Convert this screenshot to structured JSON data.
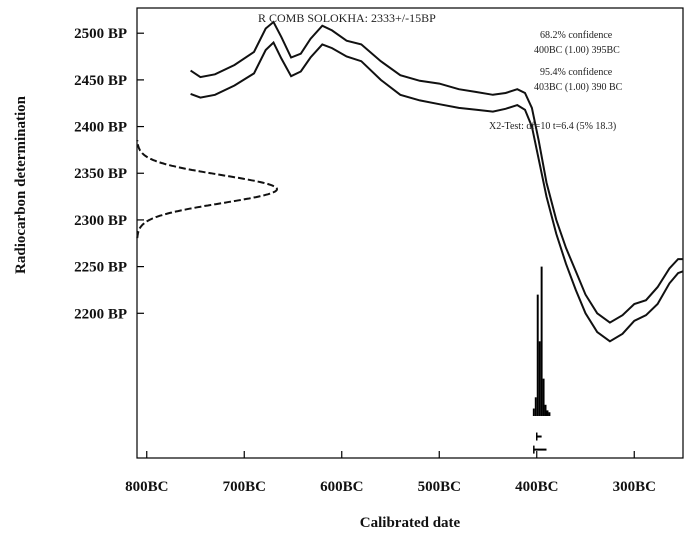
{
  "chart_data": {
    "type": "line",
    "title": "R COMB SOLOKHA: 2333+/-15BP",
    "xlabel": "Calibrated date",
    "ylabel": "Radiocarbon determination",
    "xlim": [
      -810,
      -250
    ],
    "ylim": [
      2045,
      2527
    ],
    "x_ticks": [
      {
        "value": -800,
        "label": "800BC"
      },
      {
        "value": -700,
        "label": "700BC"
      },
      {
        "value": -600,
        "label": "600BC"
      },
      {
        "value": -500,
        "label": "500BC"
      },
      {
        "value": -400,
        "label": "400BC"
      },
      {
        "value": -300,
        "label": "300BC"
      }
    ],
    "y_ticks": [
      {
        "value": 2500,
        "label": "2500 BP"
      },
      {
        "value": 2450,
        "label": "2450 BP"
      },
      {
        "value": 2400,
        "label": "2400 BP"
      },
      {
        "value": 2350,
        "label": "2350 BP"
      },
      {
        "value": 2300,
        "label": "2300 BP"
      },
      {
        "value": 2250,
        "label": "2250 BP"
      },
      {
        "value": 2200,
        "label": "2200 BP"
      }
    ],
    "annotations": [
      "68.2% confidence",
      "400BC (1.00) 395BC",
      "95.4% confidence",
      "403BC (1.00) 390 BC",
      "X2-Test: df=10 t=6.4 (5% 18.3)"
    ],
    "calibration_curve": {
      "upper": [
        [
          -755,
          2460
        ],
        [
          -745,
          2453
        ],
        [
          -730,
          2456
        ],
        [
          -710,
          2466
        ],
        [
          -690,
          2480
        ],
        [
          -678,
          2505
        ],
        [
          -670,
          2512
        ],
        [
          -662,
          2496
        ],
        [
          -652,
          2474
        ],
        [
          -642,
          2478
        ],
        [
          -632,
          2494
        ],
        [
          -620,
          2508
        ],
        [
          -610,
          2503
        ],
        [
          -595,
          2492
        ],
        [
          -580,
          2488
        ],
        [
          -560,
          2470
        ],
        [
          -540,
          2455
        ],
        [
          -520,
          2449
        ],
        [
          -500,
          2446
        ],
        [
          -480,
          2440
        ],
        [
          -462,
          2437
        ],
        [
          -445,
          2434
        ],
        [
          -432,
          2436
        ],
        [
          -420,
          2440
        ],
        [
          -412,
          2436
        ],
        [
          -405,
          2420
        ],
        [
          -398,
          2385
        ],
        [
          -390,
          2340
        ],
        [
          -380,
          2300
        ],
        [
          -370,
          2270
        ],
        [
          -360,
          2245
        ],
        [
          -350,
          2220
        ],
        [
          -338,
          2200
        ],
        [
          -325,
          2190
        ],
        [
          -312,
          2198
        ],
        [
          -300,
          2210
        ],
        [
          -288,
          2214
        ],
        [
          -276,
          2228
        ],
        [
          -264,
          2248
        ],
        [
          -255,
          2258
        ],
        [
          -250,
          2258
        ]
      ],
      "lower": [
        [
          -755,
          2435
        ],
        [
          -745,
          2431
        ],
        [
          -730,
          2434
        ],
        [
          -710,
          2444
        ],
        [
          -690,
          2457
        ],
        [
          -678,
          2482
        ],
        [
          -670,
          2490
        ],
        [
          -662,
          2473
        ],
        [
          -652,
          2454
        ],
        [
          -642,
          2459
        ],
        [
          -632,
          2474
        ],
        [
          -620,
          2488
        ],
        [
          -610,
          2484
        ],
        [
          -595,
          2475
        ],
        [
          -580,
          2470
        ],
        [
          -560,
          2450
        ],
        [
          -540,
          2434
        ],
        [
          -520,
          2428
        ],
        [
          -500,
          2424
        ],
        [
          -480,
          2420
        ],
        [
          -462,
          2418
        ],
        [
          -445,
          2416
        ],
        [
          -432,
          2419
        ],
        [
          -420,
          2423
        ],
        [
          -412,
          2418
        ],
        [
          -405,
          2400
        ],
        [
          -398,
          2365
        ],
        [
          -390,
          2325
        ],
        [
          -380,
          2285
        ],
        [
          -370,
          2253
        ],
        [
          -360,
          2225
        ],
        [
          -350,
          2200
        ],
        [
          -338,
          2180
        ],
        [
          -325,
          2170
        ],
        [
          -312,
          2178
        ],
        [
          -300,
          2192
        ],
        [
          -288,
          2198
        ],
        [
          -276,
          2210
        ],
        [
          -264,
          2232
        ],
        [
          -255,
          2243
        ],
        [
          -250,
          2245
        ]
      ]
    },
    "measurement_distribution": {
      "mean_bp": 2333,
      "sigma_bp": 15
    },
    "posterior_histogram": {
      "baseline_bp": 2090,
      "bars": [
        {
          "x": -403,
          "height_bp": 8
        },
        {
          "x": -401,
          "height_bp": 20
        },
        {
          "x": -399,
          "height_bp": 130
        },
        {
          "x": -397,
          "height_bp": 80
        },
        {
          "x": -395,
          "height_bp": 160
        },
        {
          "x": -393,
          "height_bp": 40
        },
        {
          "x": -391,
          "height_bp": 12
        },
        {
          "x": -389,
          "height_bp": 6
        },
        {
          "x": -387,
          "height_bp": 4
        }
      ]
    },
    "ranges": [
      {
        "level": "68.2%",
        "from": -400,
        "to": -395
      },
      {
        "level": "95.4%",
        "from": -403,
        "to": -390
      }
    ],
    "grid": false,
    "legend": "none"
  }
}
